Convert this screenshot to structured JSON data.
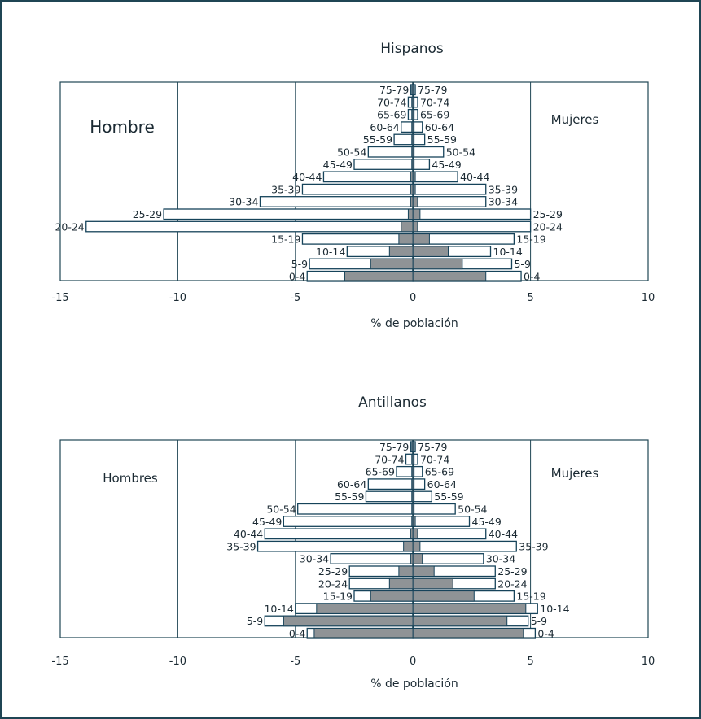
{
  "colors": {
    "frame": "#1f4554",
    "outline": "#16435a",
    "filled_bar": "#8f9396",
    "text": "#1b2a33"
  },
  "chart_data": [
    {
      "type": "bar",
      "orientation": "horizontal",
      "title": "Hispanos",
      "xlabel": "% de población",
      "xlim": [
        -15,
        10
      ],
      "xticks": [
        -15,
        -10,
        -5,
        0,
        5,
        10
      ],
      "xtick_labels": [
        "-15",
        "-10",
        "-5",
        "0",
        "5",
        "10"
      ],
      "left_label": "Hombre",
      "right_label": "Mujeres",
      "categories": [
        "0-4",
        "5-9",
        "10-14",
        "15-19",
        "20-24",
        "25-29",
        "30-34",
        "35-39",
        "40-44",
        "45-49",
        "50-54",
        "55-59",
        "60-64",
        "65-69",
        "70-74",
        "75-79"
      ],
      "outline_men": [
        -4.5,
        -4.4,
        -2.8,
        -4.7,
        -13.9,
        -10.6,
        -6.5,
        -4.7,
        -3.8,
        -2.5,
        -1.9,
        -0.8,
        -0.5,
        -0.2,
        -0.2,
        -0.1
      ],
      "outline_women": [
        4.6,
        4.2,
        3.3,
        4.3,
        5.0,
        5.0,
        3.1,
        3.1,
        1.9,
        0.7,
        1.3,
        0.5,
        0.4,
        0.2,
        0.2,
        0.1
      ],
      "filled_men": [
        -2.9,
        -1.8,
        -1.0,
        -0.6,
        -0.5,
        -0.2,
        -0.1,
        -0.1,
        -0.1,
        -0.05,
        -0.05,
        -0.05,
        -0.05,
        -0.05,
        -0.05,
        -0.05
      ],
      "filled_women": [
        3.1,
        2.1,
        1.5,
        0.7,
        0.2,
        0.3,
        0.2,
        0.1,
        0.1,
        0.05,
        0.05,
        0.05,
        0.05,
        0.05,
        0.05,
        0.05
      ]
    },
    {
      "type": "bar",
      "orientation": "horizontal",
      "title": "Antillanos",
      "xlabel": "% de población",
      "xlim": [
        -15,
        10
      ],
      "xticks": [
        -15,
        -10,
        -5,
        0,
        5,
        10
      ],
      "xtick_labels": [
        "-15",
        "-10",
        "-5",
        "0",
        "5",
        "10"
      ],
      "left_label": "Hombres",
      "right_label": "Mujeres",
      "categories": [
        "0-4",
        "5-9",
        "10-14",
        "15-19",
        "20-24",
        "25-29",
        "30-34",
        "35-39",
        "40-44",
        "45-49",
        "50-54",
        "55-59",
        "60-64",
        "65-69",
        "70-74",
        "75-79"
      ],
      "outline_men": [
        -4.5,
        -6.3,
        -5.0,
        -2.5,
        -2.7,
        -2.7,
        -3.5,
        -6.6,
        -6.3,
        -5.5,
        -4.9,
        -2.0,
        -1.9,
        -0.7,
        -0.3,
        -0.1
      ],
      "outline_women": [
        5.2,
        4.9,
        5.3,
        4.3,
        3.5,
        3.5,
        3.0,
        4.4,
        3.1,
        2.4,
        1.8,
        0.8,
        0.5,
        0.4,
        0.2,
        0.1
      ],
      "filled_men": [
        -4.2,
        -5.5,
        -4.1,
        -1.8,
        -1.0,
        -0.6,
        -0.1,
        -0.4,
        -0.1,
        -0.05,
        -0.05,
        -0.05,
        -0.05,
        -0.05,
        -0.05,
        -0.05
      ],
      "filled_women": [
        4.7,
        4.0,
        4.8,
        2.6,
        1.7,
        0.9,
        0.4,
        0.3,
        0.2,
        0.1,
        0.05,
        0.05,
        0.05,
        0.05,
        0.05,
        0.05
      ]
    }
  ]
}
